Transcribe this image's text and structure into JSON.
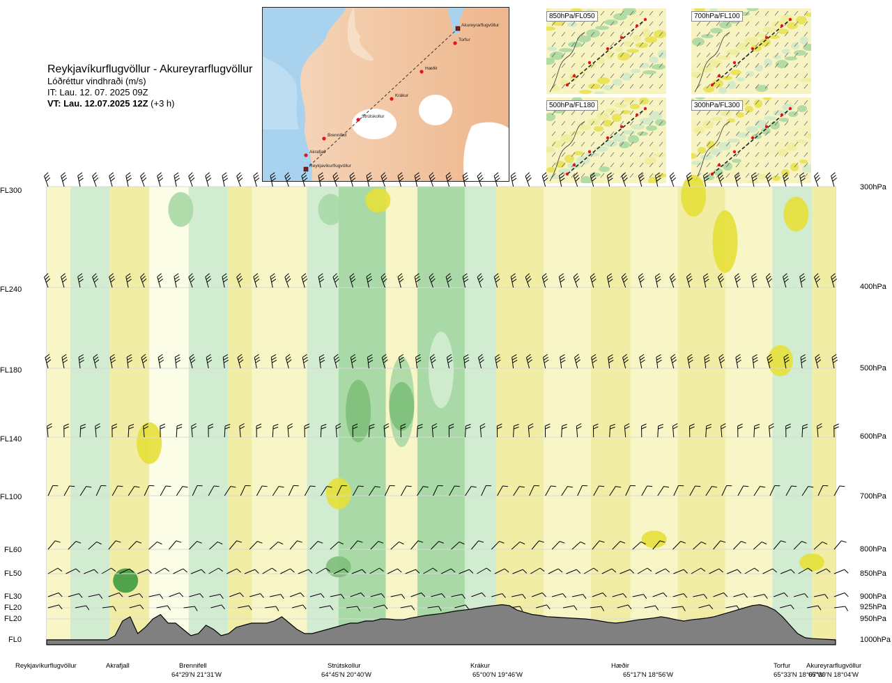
{
  "header": {
    "route": "Reykjavíkurflugvöllur - Akureyrarflugvöllur",
    "quantity": "Lóðréttur vindhraði (m/s)",
    "it": "IT: Lau. 12. 07. 2025 09Z",
    "vt_bold": "VT: Lau. 12.07.2025 12Z",
    "vt_offset": "(+3 h)"
  },
  "route_map": {
    "places": [
      {
        "name": "Akureyrarflugvöllur",
        "kind": "airport"
      },
      {
        "name": "Torfur",
        "kind": "waypoint"
      },
      {
        "name": "Hæðir",
        "kind": "waypoint"
      },
      {
        "name": "Krákur",
        "kind": "waypoint"
      },
      {
        "name": "Strútskollur",
        "kind": "waypoint"
      },
      {
        "name": "Brennifell",
        "kind": "waypoint"
      },
      {
        "name": "Akrafjall",
        "kind": "waypoint"
      },
      {
        "name": "Reykjavíkurflugvöllur",
        "kind": "airport"
      }
    ]
  },
  "mini_maps": [
    {
      "label": "850hPa/FL050"
    },
    {
      "label": "700hPa/FL100"
    },
    {
      "label": "500hPa/FL180"
    },
    {
      "label": "300hPa/FL300"
    }
  ],
  "colors": {
    "strong_down": "#e6e03a",
    "mod_down": "#f2eda4",
    "weak_down": "#f8f5c6",
    "neutral": "#fbfde6",
    "weak_up": "#d2ecd2",
    "mod_up": "#a9d9a6",
    "strong_up": "#7dbf7a",
    "very_strong_up": "#3e9a41",
    "terrain": "#808080"
  },
  "chart_data": {
    "type": "heatmap",
    "title": "Lóðréttur vindhraði (m/s)",
    "y_axis_left": {
      "levels": [
        "FL300",
        "FL240",
        "FL180",
        "FL140",
        "FL100",
        "FL60",
        "FL50",
        "FL30",
        "FL20",
        "FL20",
        "FL0"
      ]
    },
    "y_axis_right": {
      "levels": [
        "300hPa",
        "400hPa",
        "500hPa",
        "600hPa",
        "700hPa",
        "800hPa",
        "850hPa",
        "900hPa",
        "925hPa",
        "950hPa",
        "1000hPa"
      ]
    },
    "x_axis": {
      "points": [
        {
          "name": "Reykjavíkurflugvöllur",
          "coord": "",
          "frac": 0.0
        },
        {
          "name": "Akrafjall",
          "coord": "",
          "frac": 0.09
        },
        {
          "name": "Brennifell",
          "coord": "64°29'N 21°31'W",
          "frac": 0.19
        },
        {
          "name": "Strútskollur",
          "coord": "64°45'N 20°40'W",
          "frac": 0.375
        },
        {
          "name": "Krákur",
          "coord": "65°00'N 19°46'W",
          "frac": 0.55
        },
        {
          "name": "Hæðir",
          "coord": "65°17'N 18°56'W",
          "frac": 0.73
        },
        {
          "name": "Torfur",
          "coord": "65°33'N 18°07'W",
          "frac": 0.94
        },
        {
          "name": "Akureyrarflugvöllur",
          "coord": "65°39'N 18°04'W",
          "frac": 1.0
        }
      ]
    },
    "terrain_profile_hpa": [
      1000,
      1000,
      1000,
      1000,
      1000,
      1000,
      1000,
      1000,
      1000,
      990,
      955,
      945,
      985,
      970,
      950,
      940,
      960,
      960,
      975,
      990,
      985,
      965,
      975,
      990,
      985,
      970,
      965,
      960,
      960,
      960,
      955,
      945,
      960,
      975,
      985,
      985,
      980,
      975,
      970,
      965,
      960,
      960,
      955,
      955,
      950,
      950,
      952,
      952,
      948,
      945,
      942,
      940,
      938,
      935,
      932,
      930,
      928,
      925,
      922,
      920,
      918,
      920,
      930,
      935,
      940,
      942,
      945,
      946,
      947,
      948,
      949,
      950,
      952,
      955,
      958,
      960,
      958,
      955,
      952,
      950,
      948,
      945,
      948,
      952,
      955,
      952,
      950,
      948,
      945,
      940,
      935,
      930,
      925,
      920,
      918,
      922,
      930,
      945,
      965,
      985,
      995,
      997,
      998,
      999,
      1000
    ]
  }
}
